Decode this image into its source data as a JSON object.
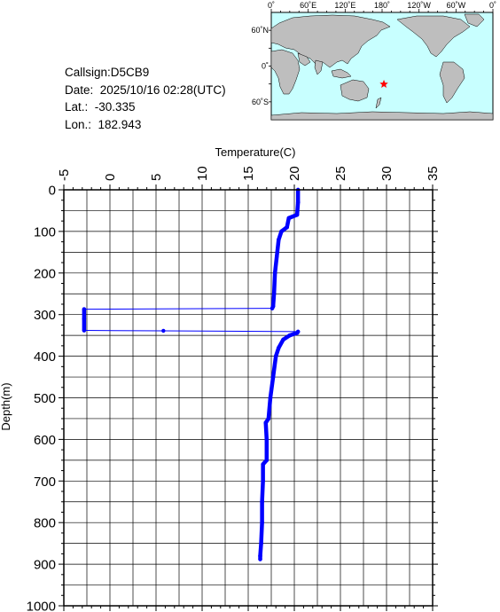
{
  "info": {
    "callsign": "Callsign:D5CB9",
    "date": "Date:  2025/10/16 02:28(UTC)",
    "lat": "Lat.:  -30.335",
    "lon": "Lon.:  182.943"
  },
  "map": {
    "top_labels": [
      "0˚",
      "60˚E",
      "120˚E",
      "180˚",
      "120˚W",
      "60˚W",
      "0˚"
    ],
    "side_labels": [
      "60˚N",
      "0˚",
      "60˚S"
    ],
    "ocean_color": "#c8ffff",
    "land_color": "#bebebe",
    "marker_color": "#ff0000",
    "marker_icon": "red-star"
  },
  "chart_data": {
    "type": "line",
    "xlabel": "Temperature(C)",
    "ylabel": "Depth(m)",
    "xlim": [
      -5,
      35
    ],
    "ylim": [
      1000,
      0
    ],
    "x_ticks": [
      "-5",
      "0",
      "5",
      "10",
      "15",
      "20",
      "25",
      "30",
      "35"
    ],
    "y_ticks": [
      "0",
      "100",
      "200",
      "300",
      "400",
      "500",
      "600",
      "700",
      "800",
      "900",
      "1000"
    ],
    "grid": true,
    "line_color": "#0000ff",
    "series": [
      {
        "points": [
          [
            20.4,
            0
          ],
          [
            20.4,
            30
          ],
          [
            20.3,
            60
          ],
          [
            19.4,
            68
          ],
          [
            19.2,
            90
          ],
          [
            18.6,
            100
          ],
          [
            18.3,
            120
          ],
          [
            18.1,
            160
          ],
          [
            17.9,
            200
          ],
          [
            17.8,
            250
          ],
          [
            17.7,
            280
          ],
          [
            17.6,
            285
          ],
          [
            -2.8,
            287
          ],
          [
            -2.8,
            310
          ],
          [
            -2.8,
            338
          ],
          [
            5.8,
            339
          ],
          [
            20.4,
            341
          ],
          [
            20.3,
            344
          ],
          [
            19.5,
            350
          ],
          [
            18.8,
            360
          ],
          [
            18.3,
            380
          ],
          [
            18.0,
            400
          ],
          [
            17.7,
            450
          ],
          [
            17.4,
            500
          ],
          [
            17.2,
            550
          ],
          [
            16.9,
            560
          ],
          [
            17.0,
            600
          ],
          [
            17.0,
            650
          ],
          [
            16.6,
            660
          ],
          [
            16.6,
            700
          ],
          [
            16.5,
            750
          ],
          [
            16.5,
            800
          ],
          [
            16.4,
            850
          ],
          [
            16.3,
            880
          ],
          [
            16.3,
            888
          ]
        ]
      }
    ]
  }
}
